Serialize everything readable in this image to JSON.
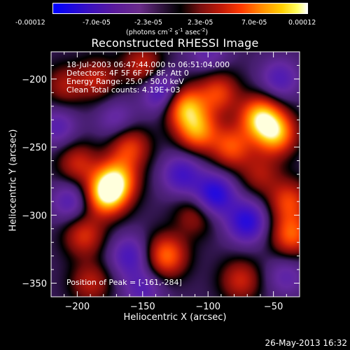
{
  "colorbar": {
    "ticks": [
      "-0.00012",
      "-7.0e-05",
      "-2.3e-05",
      "2.3e-05",
      "7.0e-05",
      "0.00012"
    ],
    "unit_text": "(photons cm",
    "unit_exp1": "-2",
    "unit_mid": " s",
    "unit_exp2": "-1",
    "unit_mid2": " asec",
    "unit_exp3": "-2",
    "unit_end": ")"
  },
  "chart_data": {
    "type": "heatmap",
    "title": "Reconstructed RHESSI Image",
    "xlabel": "Heliocentric X (arcsec)",
    "ylabel": "Heliocentric Y (arcsec)",
    "xlim": [
      -220,
      -30
    ],
    "ylim": [
      -360,
      -180
    ],
    "xticks": [
      -200,
      -150,
      -100,
      -50
    ],
    "yticks": [
      -200,
      -250,
      -300,
      -350
    ],
    "info_lines": [
      "18-Jul-2003 06:47:44.000 to 06:51:04.000",
      "Detectors: 4F 5F 6F 7F 8F, Att 0",
      "Energy Range: 25.0 - 50.0 keV",
      "Clean     Total counts: 4.19E+03"
    ],
    "peak_label": "Position of Peak = [-161,-284]",
    "peak": [
      -161,
      -284
    ],
    "blobs": [
      {
        "x": -178,
        "y": -285,
        "amp": 1.0
      },
      {
        "x": -170,
        "y": -274,
        "amp": 0.8
      },
      {
        "x": -160,
        "y": -250,
        "amp": 0.55
      },
      {
        "x": -118,
        "y": -220,
        "amp": 0.85
      },
      {
        "x": -108,
        "y": -238,
        "amp": 0.75
      },
      {
        "x": -92,
        "y": -210,
        "amp": 0.55
      },
      {
        "x": -60,
        "y": -228,
        "amp": 0.9
      },
      {
        "x": -48,
        "y": -240,
        "amp": 0.85
      },
      {
        "x": -82,
        "y": -250,
        "amp": 0.6
      },
      {
        "x": -38,
        "y": -290,
        "amp": 0.55
      },
      {
        "x": -36,
        "y": -315,
        "amp": 0.65
      },
      {
        "x": -132,
        "y": -330,
        "amp": 0.7
      },
      {
        "x": -195,
        "y": -315,
        "amp": 0.5
      },
      {
        "x": -200,
        "y": -262,
        "amp": 0.45
      },
      {
        "x": -150,
        "y": -190,
        "amp": 0.45
      },
      {
        "x": -185,
        "y": -200,
        "amp": 0.4
      },
      {
        "x": -210,
        "y": -205,
        "amp": 0.35
      },
      {
        "x": -75,
        "y": -348,
        "amp": 0.45
      },
      {
        "x": -190,
        "y": -350,
        "amp": 0.4
      },
      {
        "x": -110,
        "y": -300,
        "amp": 0.35
      },
      {
        "x": -60,
        "y": -270,
        "amp": 0.35
      },
      {
        "x": -135,
        "y": -210,
        "amp": -0.55
      },
      {
        "x": -95,
        "y": -285,
        "amp": -0.7
      },
      {
        "x": -70,
        "y": -305,
        "amp": -0.65
      },
      {
        "x": -120,
        "y": -270,
        "amp": -0.5
      },
      {
        "x": -160,
        "y": -330,
        "amp": -0.45
      },
      {
        "x": -205,
        "y": -290,
        "amp": -0.4
      },
      {
        "x": -45,
        "y": -200,
        "amp": -0.4
      },
      {
        "x": -150,
        "y": -355,
        "amp": -0.35
      },
      {
        "x": -100,
        "y": -180,
        "amp": -0.3
      },
      {
        "x": -215,
        "y": -235,
        "amp": -0.35
      },
      {
        "x": -40,
        "y": -345,
        "amp": -0.3
      },
      {
        "x": -170,
        "y": -230,
        "amp": -0.3
      }
    ]
  },
  "footer": "26-May-2013 16:32"
}
